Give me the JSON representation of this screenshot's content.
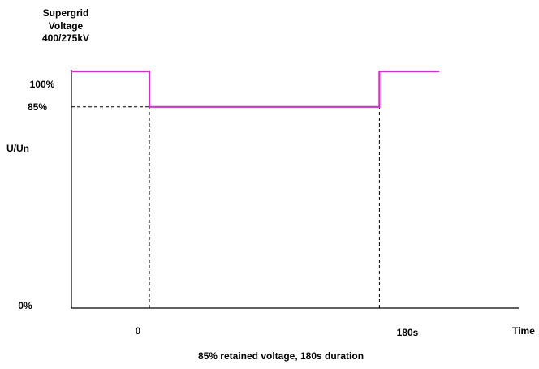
{
  "chart_data": {
    "type": "line",
    "ylabel_title": [
      "Supergrid",
      "Voltage",
      "400/275kV"
    ],
    "ylabel": "U/Un",
    "xlabel": "Time",
    "caption": "85% retained voltage, 180s duration",
    "y_ticks": [
      "100%",
      "85%",
      "0%"
    ],
    "x_ticks": [
      "0",
      "180s"
    ],
    "xlim": [
      -61,
      289
    ],
    "ylim": [
      0,
      100
    ],
    "series": [
      {
        "color": "#cc33cc",
        "points": [
          [
            -61,
            100
          ],
          [
            0,
            100
          ],
          [
            0,
            85
          ],
          [
            180,
            85
          ],
          [
            180,
            100
          ],
          [
            227,
            100
          ]
        ]
      }
    ],
    "reference_lines": [
      {
        "type": "horizontal",
        "y": 85,
        "x_from": -61,
        "x_to": 180,
        "style": "dashed"
      },
      {
        "type": "vertical",
        "x": 0,
        "y_from": 0,
        "y_to": 85,
        "style": "dashed"
      },
      {
        "type": "vertical",
        "x": 180,
        "y_from": 0,
        "y_to": 85,
        "style": "dashed"
      }
    ],
    "axis_color": "#000000"
  }
}
